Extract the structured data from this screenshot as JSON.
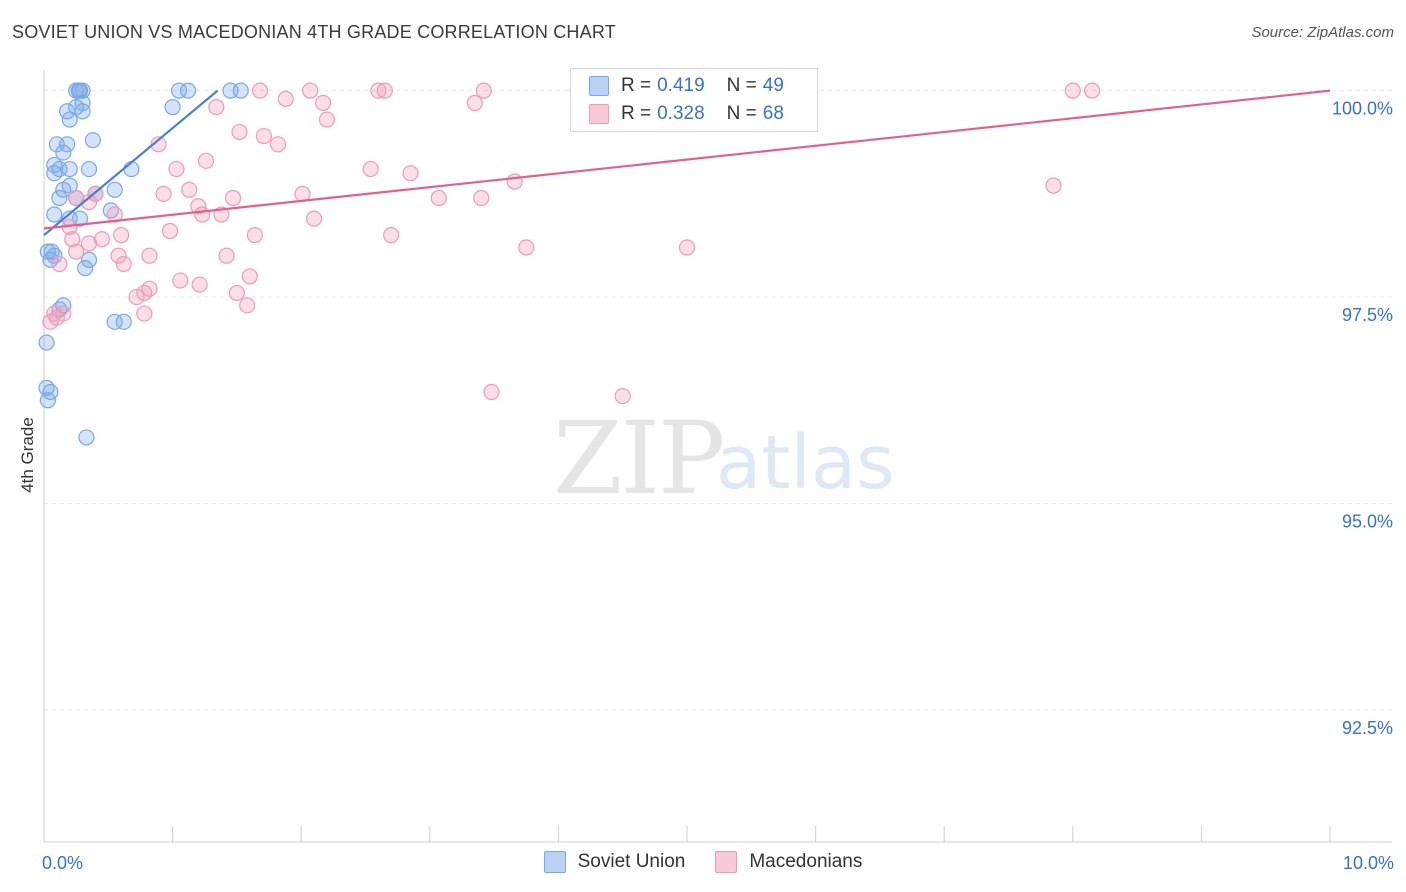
{
  "title": "SOVIET UNION VS MACEDONIAN 4TH GRADE CORRELATION CHART",
  "source": "Source: ZipAtlas.com",
  "watermark": {
    "part1": "ZIP",
    "part2": "atlas"
  },
  "legend_top": {
    "rows": [
      {
        "r_label": "R =",
        "r_value": "0.419",
        "n_label": "N =",
        "n_value": "49",
        "color": "#7aa8e6",
        "fill": "#b9d1f3"
      },
      {
        "r_label": "R =",
        "r_value": "0.328",
        "n_label": "N =",
        "n_value": "68",
        "color": "#ef9ab8",
        "fill": "#f8c9d8"
      }
    ]
  },
  "legend_bottom": [
    {
      "label": "Soviet Union",
      "color": "#7aa8e6",
      "fill": "#b9d1f3"
    },
    {
      "label": "Macedonians",
      "color": "#ef9ab8",
      "fill": "#f8c9d8"
    }
  ],
  "chart_data": {
    "type": "scatter",
    "title": "SOVIET UNION VS MACEDONIAN 4TH GRADE CORRELATION CHART",
    "xlabel": "",
    "ylabel": "4th Grade",
    "xlim": [
      0,
      10
    ],
    "ylim": [
      90.9,
      100.25
    ],
    "x_ticks": [
      0,
      10
    ],
    "x_tick_labels": [
      "0.0%",
      "10.0%"
    ],
    "y_ticks": [
      92.5,
      95.0,
      97.5,
      100.0
    ],
    "y_tick_labels": [
      "92.5%",
      "95.0%",
      "97.5%",
      "100.0%"
    ],
    "grid": true,
    "series": [
      {
        "name": "Soviet Union",
        "color": "#4a7fd1",
        "marker_color": "#7aa8e6",
        "r": 0.419,
        "n": 49,
        "trend": {
          "x": [
            0.0,
            1.35
          ],
          "y": [
            98.25,
            100.0
          ]
        },
        "points": [
          [
            0.25,
            100.0
          ],
          [
            0.28,
            100.0
          ],
          [
            0.3,
            100.0
          ],
          [
            0.27,
            100.0
          ],
          [
            1.05,
            100.0
          ],
          [
            1.12,
            100.0
          ],
          [
            1.45,
            100.0
          ],
          [
            1.53,
            100.0
          ],
          [
            0.3,
            99.85
          ],
          [
            0.25,
            99.8
          ],
          [
            0.3,
            99.75
          ],
          [
            0.18,
            99.75
          ],
          [
            0.2,
            99.65
          ],
          [
            1.0,
            99.8
          ],
          [
            0.1,
            99.35
          ],
          [
            0.18,
            99.35
          ],
          [
            0.38,
            99.4
          ],
          [
            0.15,
            99.25
          ],
          [
            0.08,
            99.1
          ],
          [
            0.35,
            99.05
          ],
          [
            0.12,
            99.05
          ],
          [
            0.2,
            99.05
          ],
          [
            0.68,
            99.05
          ],
          [
            0.08,
            99.0
          ],
          [
            0.2,
            98.85
          ],
          [
            0.15,
            98.8
          ],
          [
            0.55,
            98.8
          ],
          [
            0.4,
            98.75
          ],
          [
            0.12,
            98.7
          ],
          [
            0.25,
            98.7
          ],
          [
            0.52,
            98.55
          ],
          [
            0.08,
            98.5
          ],
          [
            0.2,
            98.45
          ],
          [
            0.28,
            98.45
          ],
          [
            0.03,
            98.05
          ],
          [
            0.06,
            98.05
          ],
          [
            0.08,
            98.0
          ],
          [
            0.35,
            97.95
          ],
          [
            0.05,
            97.95
          ],
          [
            0.32,
            97.85
          ],
          [
            0.15,
            97.4
          ],
          [
            0.12,
            97.35
          ],
          [
            0.55,
            97.2
          ],
          [
            0.62,
            97.2
          ],
          [
            0.02,
            96.95
          ],
          [
            0.02,
            96.4
          ],
          [
            0.05,
            96.35
          ],
          [
            0.03,
            96.25
          ],
          [
            0.33,
            95.8
          ]
        ]
      },
      {
        "name": "Macedonians",
        "color": "#e0628c",
        "marker_color": "#ef9ab8",
        "r": 0.328,
        "n": 68,
        "trend": {
          "x": [
            0.0,
            10.0
          ],
          "y": [
            98.33,
            100.0
          ]
        },
        "points": [
          [
            1.68,
            100.0
          ],
          [
            2.07,
            100.0
          ],
          [
            2.6,
            100.0
          ],
          [
            2.65,
            100.0
          ],
          [
            3.42,
            100.0
          ],
          [
            4.15,
            100.0
          ],
          [
            8.0,
            100.0
          ],
          [
            8.15,
            100.0
          ],
          [
            1.88,
            99.9
          ],
          [
            2.17,
            99.85
          ],
          [
            3.35,
            99.85
          ],
          [
            1.34,
            99.8
          ],
          [
            2.2,
            99.65
          ],
          [
            1.52,
            99.5
          ],
          [
            1.71,
            99.45
          ],
          [
            1.82,
            99.35
          ],
          [
            0.89,
            99.35
          ],
          [
            1.26,
            99.15
          ],
          [
            1.03,
            99.05
          ],
          [
            2.54,
            99.05
          ],
          [
            2.85,
            99.0
          ],
          [
            3.66,
            98.9
          ],
          [
            7.85,
            98.85
          ],
          [
            1.13,
            98.8
          ],
          [
            0.93,
            98.75
          ],
          [
            2.01,
            98.75
          ],
          [
            3.07,
            98.7
          ],
          [
            3.4,
            98.7
          ],
          [
            1.47,
            98.7
          ],
          [
            0.4,
            98.75
          ],
          [
            0.35,
            98.65
          ],
          [
            0.25,
            98.7
          ],
          [
            0.55,
            98.5
          ],
          [
            1.2,
            98.6
          ],
          [
            1.23,
            98.5
          ],
          [
            1.38,
            98.5
          ],
          [
            2.1,
            98.45
          ],
          [
            0.2,
            98.35
          ],
          [
            0.98,
            98.3
          ],
          [
            1.64,
            98.25
          ],
          [
            2.7,
            98.25
          ],
          [
            0.6,
            98.25
          ],
          [
            0.45,
            98.2
          ],
          [
            0.22,
            98.2
          ],
          [
            0.25,
            98.05
          ],
          [
            3.75,
            98.1
          ],
          [
            5.0,
            98.1
          ],
          [
            0.82,
            98.0
          ],
          [
            1.42,
            98.0
          ],
          [
            0.58,
            98.0
          ],
          [
            0.62,
            97.9
          ],
          [
            0.12,
            97.9
          ],
          [
            1.06,
            97.7
          ],
          [
            1.21,
            97.65
          ],
          [
            0.82,
            97.6
          ],
          [
            0.78,
            97.55
          ],
          [
            1.5,
            97.55
          ],
          [
            1.6,
            97.75
          ],
          [
            0.72,
            97.5
          ],
          [
            1.58,
            97.4
          ],
          [
            0.78,
            97.3
          ],
          [
            0.08,
            97.3
          ],
          [
            0.1,
            97.25
          ],
          [
            0.05,
            97.2
          ],
          [
            0.15,
            97.3
          ],
          [
            3.48,
            96.35
          ],
          [
            4.5,
            96.3
          ],
          [
            0.35,
            98.15
          ]
        ]
      }
    ]
  }
}
